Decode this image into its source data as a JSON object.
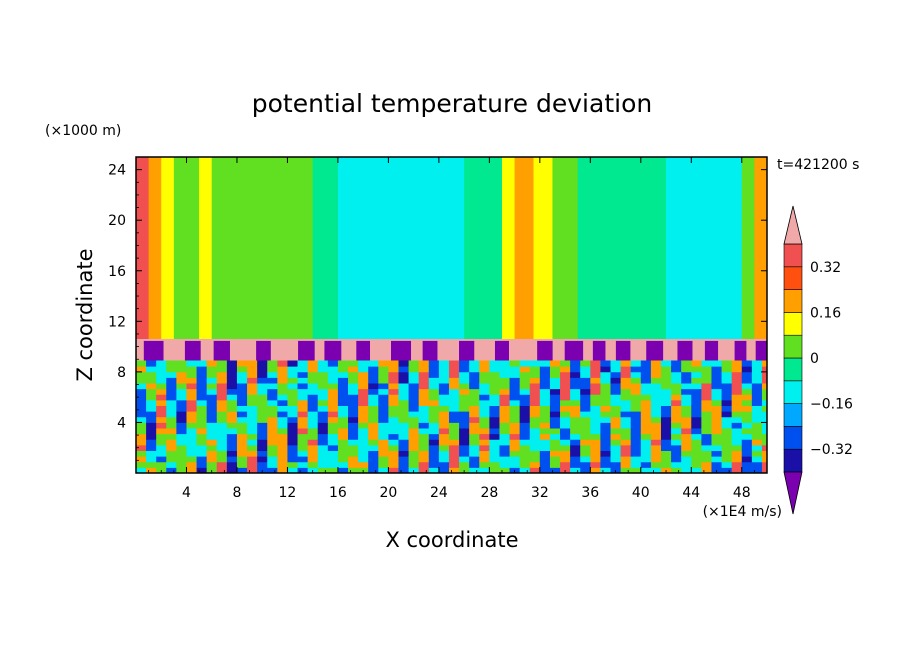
{
  "chart_data": {
    "type": "heatmap",
    "title": "potential temperature deviation",
    "xlabel": "X coordinate",
    "ylabel": "Z coordinate",
    "x_unit": "(×1E4 m/s)",
    "y_unit": "(×1000 m)",
    "time_label": "t=421200 s",
    "xlim": [
      0,
      50
    ],
    "ylim": [
      0,
      25
    ],
    "x_ticks": [
      4,
      8,
      12,
      16,
      20,
      24,
      28,
      32,
      36,
      40,
      44,
      48
    ],
    "y_ticks": [
      4,
      8,
      12,
      16,
      20,
      24
    ],
    "x_tick_labels": [
      "4",
      "8",
      "12",
      "16",
      "20",
      "24",
      "28",
      "32",
      "36",
      "40",
      "44",
      "48"
    ],
    "y_tick_labels": [
      "4",
      "8",
      "12",
      "16",
      "20",
      "24"
    ],
    "colorbar": {
      "levels": [
        -0.4,
        -0.32,
        -0.24,
        -0.16,
        -0.08,
        0,
        0.08,
        0.16,
        0.24,
        0.32,
        0.4
      ],
      "colors": [
        "#7a00b0",
        "#1a10a8",
        "#0050f0",
        "#00a8ff",
        "#00f0f0",
        "#00e890",
        "#60e020",
        "#ffff00",
        "#ffa000",
        "#ff5010",
        "#f05050",
        "#f0a8a8"
      ],
      "tick_values": [
        -0.32,
        -0.16,
        0,
        0.16,
        0.32
      ],
      "tick_labels": [
        "−0.32",
        "−0.16",
        "0",
        "0.16",
        "0.32"
      ]
    },
    "upper_region_columns": [
      {
        "x0": 0,
        "x1": 1,
        "value": 0.34
      },
      {
        "x0": 1,
        "x1": 2,
        "value": 0.21
      },
      {
        "x0": 2,
        "x1": 3,
        "value": 0.14
      },
      {
        "x0": 3,
        "x1": 5,
        "value": 0.06
      },
      {
        "x0": 5,
        "x1": 6,
        "value": 0.13
      },
      {
        "x0": 6,
        "x1": 8,
        "value": 0.04
      },
      {
        "x0": 8,
        "x1": 10,
        "value": 0.02
      },
      {
        "x0": 10,
        "x1": 14,
        "value": 0.03
      },
      {
        "x0": 14,
        "x1": 16,
        "value": -0.03
      },
      {
        "x0": 16,
        "x1": 19,
        "value": -0.12
      },
      {
        "x0": 19,
        "x1": 26,
        "value": -0.13
      },
      {
        "x0": 26,
        "x1": 29,
        "value": -0.04
      },
      {
        "x0": 29,
        "x1": 30,
        "value": 0.11
      },
      {
        "x0": 30,
        "x1": 31.5,
        "value": 0.22
      },
      {
        "x0": 31.5,
        "x1": 33,
        "value": 0.14
      },
      {
        "x0": 33,
        "x1": 35,
        "value": 0.04
      },
      {
        "x0": 35,
        "x1": 39,
        "value": -0.03
      },
      {
        "x0": 39,
        "x1": 42,
        "value": -0.06
      },
      {
        "x0": 42,
        "x1": 48,
        "value": -0.13
      },
      {
        "x0": 48,
        "x1": 49,
        "value": 0.02
      },
      {
        "x0": 49,
        "x1": 50,
        "value": 0.2
      }
    ],
    "inversion_layer": {
      "z0": 8.9,
      "z1": 10.6,
      "value": 0.42
    },
    "purple_plumes_x": [
      1.4,
      4.5,
      6.8,
      10.1,
      13.5,
      15.6,
      18.0,
      21.0,
      23.3,
      26.2,
      29.0,
      32.4,
      34.7,
      36.7,
      38.6,
      41.1,
      43.5,
      45.6,
      47.9,
      49.6
    ],
    "lower_region": {
      "z0": 0,
      "z1": 8.9,
      "description_values": [
        -0.4,
        -0.32,
        -0.16,
        0,
        0.16,
        0.32
      ]
    }
  }
}
